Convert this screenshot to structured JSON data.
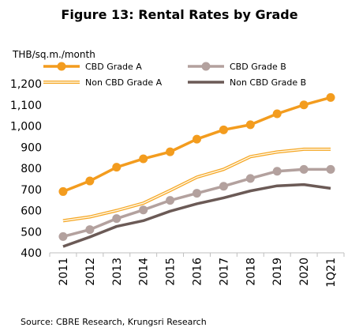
{
  "title": "Figure 13: Rental Rates by Grade",
  "unit_label": "THB/sq.m./month",
  "source": "Source: CBRE Research, Krungsri Research",
  "chart_data": {
    "type": "line",
    "title": "Figure 13: Rental Rates by Grade",
    "ylabel": "THB/sq.m./month",
    "xlabel": "",
    "categories": [
      "2011",
      "2012",
      "2013",
      "2014",
      "2015",
      "2016",
      "2017",
      "2018",
      "2019",
      "2020",
      "1Q21"
    ],
    "ylim": [
      400,
      1200
    ],
    "yticks": [
      400,
      500,
      600,
      700,
      800,
      900,
      1000,
      1100,
      1200
    ],
    "ytick_labels": [
      "400",
      "500",
      "600",
      "700",
      "800",
      "900",
      "1,000",
      "1,100",
      "1,200"
    ],
    "grid": false,
    "legend_position": "top",
    "series": [
      {
        "name": "CBD Grade A",
        "color": "#f39c1e",
        "style": "thick-marker",
        "values": [
          690,
          740,
          805,
          845,
          878,
          938,
          982,
          1006,
          1058,
          1100,
          1135
        ]
      },
      {
        "name": "CBD Grade B",
        "color": "#b3a19e",
        "style": "thick-marker",
        "values": [
          477,
          510,
          562,
          603,
          648,
          682,
          715,
          752,
          786,
          795,
          795
        ]
      },
      {
        "name": "Non CBD Grade A",
        "color": "#f5a623",
        "style": "double-line",
        "values": [
          552,
          570,
          600,
          635,
          695,
          758,
          795,
          855,
          877,
          890,
          890
        ]
      },
      {
        "name": "Non CBD Grade B",
        "color": "#6b5a56",
        "style": "thick-line",
        "values": [
          430,
          475,
          525,
          552,
          597,
          632,
          660,
          693,
          717,
          723,
          705
        ]
      }
    ]
  }
}
